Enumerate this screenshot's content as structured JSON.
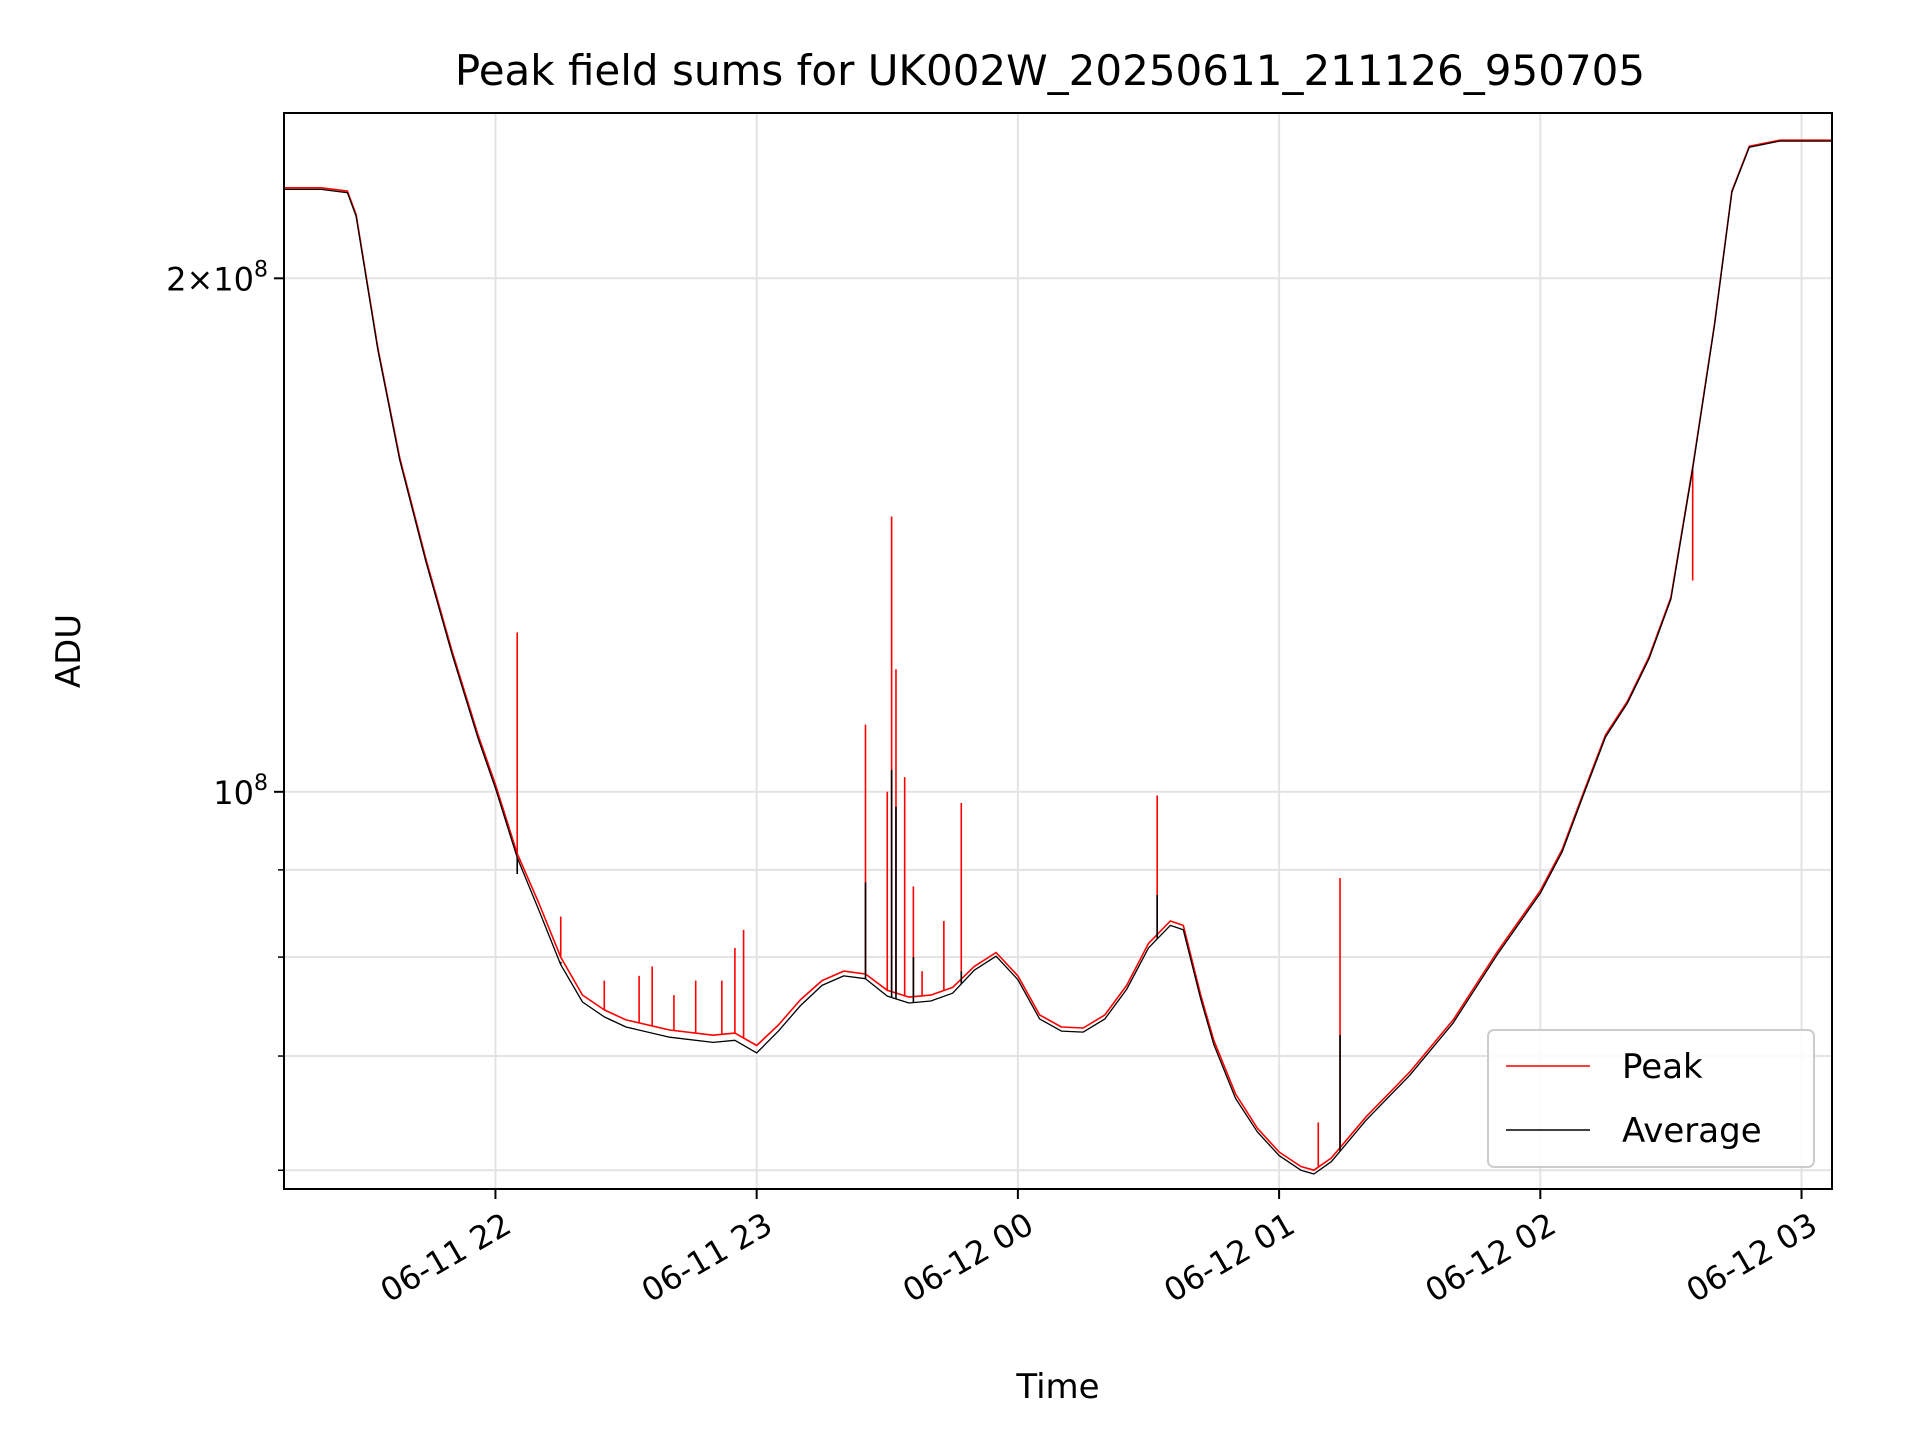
{
  "chart_data": {
    "type": "line",
    "title": "Peak field sums for UK002W_20250611_211126_950705",
    "xlabel": "Time",
    "ylabel": "ADU",
    "xlim": [
      "2025-06-11T21:11:26",
      "2025-06-12T03:07:00"
    ],
    "ylim": [
      58500000,
      250000000
    ],
    "yscale": "log",
    "grid": true,
    "legend_position": "lower right",
    "x_ticks": [
      {
        "label": "06-11 22",
        "time": "2025-06-11T22:00:00"
      },
      {
        "label": "06-11 23",
        "time": "2025-06-11T23:00:00"
      },
      {
        "label": "06-12 00",
        "time": "2025-06-12T00:00:00"
      },
      {
        "label": "06-12 01",
        "time": "2025-06-12T01:00:00"
      },
      {
        "label": "06-12 02",
        "time": "2025-06-12T02:00:00"
      },
      {
        "label": "06-12 03",
        "time": "2025-06-12T03:00:00"
      }
    ],
    "y_ticks_major": [
      {
        "base": "10",
        "exp": "8",
        "value": 100000000
      },
      {
        "mant": "2",
        "base": "10",
        "exp": "8",
        "value": 200000000
      }
    ],
    "y_ticks_minor": [
      60000000,
      70000000,
      80000000,
      90000000
    ],
    "series": [
      {
        "name": "Peak",
        "color": "#ff0000",
        "points": [
          [
            "2025-06-11T21:11:26",
            226000000
          ],
          [
            "2025-06-11T21:20:00",
            226000000
          ],
          [
            "2025-06-11T21:26:00",
            225000000
          ],
          [
            "2025-06-11T21:28:00",
            218000000
          ],
          [
            "2025-06-11T21:33:00",
            182000000
          ],
          [
            "2025-06-11T21:38:00",
            157000000
          ],
          [
            "2025-06-11T21:44:00",
            137000000
          ],
          [
            "2025-06-11T21:50:00",
            121000000
          ],
          [
            "2025-06-11T21:56:00",
            108000000
          ],
          [
            "2025-06-11T22:00:00",
            101000000
          ],
          [
            "2025-06-11T22:05:00",
            92000000
          ],
          [
            "2025-06-11T22:10:00",
            86000000
          ],
          [
            "2025-06-11T22:15:00",
            80000000
          ],
          [
            "2025-06-11T22:20:00",
            76000000
          ],
          [
            "2025-06-11T22:25:00",
            74500000
          ],
          [
            "2025-06-11T22:30:00",
            73500000
          ],
          [
            "2025-06-11T22:40:00",
            72500000
          ],
          [
            "2025-06-11T22:50:00",
            72000000
          ],
          [
            "2025-06-11T22:55:00",
            72200000
          ],
          [
            "2025-06-11T23:00:00",
            71000000
          ],
          [
            "2025-06-11T23:05:00",
            73000000
          ],
          [
            "2025-06-11T23:10:00",
            75500000
          ],
          [
            "2025-06-11T23:15:00",
            77500000
          ],
          [
            "2025-06-11T23:20:00",
            78500000
          ],
          [
            "2025-06-11T23:25:00",
            78200000
          ],
          [
            "2025-06-11T23:30:00",
            76500000
          ],
          [
            "2025-06-11T23:35:00",
            75800000
          ],
          [
            "2025-06-11T23:40:00",
            76000000
          ],
          [
            "2025-06-11T23:45:00",
            76800000
          ],
          [
            "2025-06-11T23:50:00",
            79000000
          ],
          [
            "2025-06-11T23:55:00",
            80500000
          ],
          [
            "2025-06-12T00:00:00",
            78000000
          ],
          [
            "2025-06-12T00:05:00",
            74000000
          ],
          [
            "2025-06-12T00:10:00",
            72800000
          ],
          [
            "2025-06-12T00:15:00",
            72700000
          ],
          [
            "2025-06-12T00:20:00",
            74000000
          ],
          [
            "2025-06-12T00:25:00",
            77000000
          ],
          [
            "2025-06-12T00:30:00",
            81500000
          ],
          [
            "2025-06-12T00:35:00",
            84000000
          ],
          [
            "2025-06-12T00:38:00",
            83500000
          ],
          [
            "2025-06-12T00:42:00",
            76000000
          ],
          [
            "2025-06-12T00:45:00",
            71500000
          ],
          [
            "2025-06-12T00:50:00",
            66500000
          ],
          [
            "2025-06-12T00:55:00",
            63500000
          ],
          [
            "2025-06-12T01:00:00",
            61500000
          ],
          [
            "2025-06-12T01:05:00",
            60300000
          ],
          [
            "2025-06-12T01:08:00",
            60000000
          ],
          [
            "2025-06-12T01:12:00",
            61000000
          ],
          [
            "2025-06-12T01:20:00",
            64500000
          ],
          [
            "2025-06-12T01:30:00",
            68500000
          ],
          [
            "2025-06-12T01:40:00",
            73500000
          ],
          [
            "2025-06-12T01:50:00",
            80500000
          ],
          [
            "2025-06-12T02:00:00",
            87500000
          ],
          [
            "2025-06-12T02:05:00",
            92500000
          ],
          [
            "2025-06-12T02:10:00",
            100000000
          ],
          [
            "2025-06-12T02:15:00",
            108000000
          ],
          [
            "2025-06-12T02:20:00",
            113000000
          ],
          [
            "2025-06-12T02:25:00",
            120000000
          ],
          [
            "2025-06-12T02:30:00",
            130000000
          ],
          [
            "2025-06-12T02:35:00",
            155000000
          ],
          [
            "2025-06-12T02:40:00",
            188000000
          ],
          [
            "2025-06-12T02:44:00",
            225000000
          ],
          [
            "2025-06-12T02:48:00",
            239000000
          ],
          [
            "2025-06-12T02:55:00",
            241000000
          ],
          [
            "2025-06-12T03:07:00",
            241000000
          ]
        ],
        "spikes": [
          [
            "2025-06-11T22:05:00",
            124000000
          ],
          [
            "2025-06-11T22:15:00",
            84500000
          ],
          [
            "2025-06-11T22:25:00",
            77500000
          ],
          [
            "2025-06-11T22:52:00",
            77500000
          ],
          [
            "2025-06-11T22:57:00",
            83000000
          ],
          [
            "2025-06-11T22:55:00",
            81000000
          ],
          [
            "2025-06-11T22:36:00",
            79000000
          ],
          [
            "2025-06-11T22:33:00",
            78000000
          ],
          [
            "2025-06-11T22:46:00",
            77500000
          ],
          [
            "2025-06-11T22:41:00",
            76000000
          ],
          [
            "2025-06-11T23:25:00",
            109500000
          ],
          [
            "2025-06-11T23:30:00",
            100000000
          ],
          [
            "2025-06-11T23:31:00",
            145000000
          ],
          [
            "2025-06-11T23:32:00",
            118000000
          ],
          [
            "2025-06-11T23:34:00",
            102000000
          ],
          [
            "2025-06-11T23:36:00",
            88000000
          ],
          [
            "2025-06-11T23:38:00",
            78500000
          ],
          [
            "2025-06-11T23:43:00",
            84000000
          ],
          [
            "2025-06-11T23:47:00",
            98500000
          ],
          [
            "2025-06-12T00:32:00",
            99500000
          ],
          [
            "2025-06-12T01:14:00",
            89000000
          ],
          [
            "2025-06-12T01:09:00",
            64000000
          ],
          [
            "2025-06-12T02:35:00",
            133000000
          ]
        ]
      },
      {
        "name": "Average",
        "color": "#000000",
        "points": [
          [
            "2025-06-11T21:11:26",
            225500000
          ],
          [
            "2025-06-11T21:20:00",
            225500000
          ],
          [
            "2025-06-11T21:26:00",
            224500000
          ],
          [
            "2025-06-11T21:28:00",
            217500000
          ],
          [
            "2025-06-11T21:33:00",
            181500000
          ],
          [
            "2025-06-11T21:38:00",
            156500000
          ],
          [
            "2025-06-11T21:44:00",
            136500000
          ],
          [
            "2025-06-11T21:50:00",
            120500000
          ],
          [
            "2025-06-11T21:56:00",
            107500000
          ],
          [
            "2025-06-11T22:00:00",
            100500000
          ],
          [
            "2025-06-11T22:05:00",
            91500000
          ],
          [
            "2025-06-11T22:10:00",
            85200000
          ],
          [
            "2025-06-11T22:15:00",
            79200000
          ],
          [
            "2025-06-11T22:20:00",
            75300000
          ],
          [
            "2025-06-11T22:25:00",
            73800000
          ],
          [
            "2025-06-11T22:30:00",
            72800000
          ],
          [
            "2025-06-11T22:40:00",
            71800000
          ],
          [
            "2025-06-11T22:50:00",
            71300000
          ],
          [
            "2025-06-11T22:55:00",
            71500000
          ],
          [
            "2025-06-11T23:00:00",
            70300000
          ],
          [
            "2025-06-11T23:05:00",
            72400000
          ],
          [
            "2025-06-11T23:10:00",
            74900000
          ],
          [
            "2025-06-11T23:15:00",
            77000000
          ],
          [
            "2025-06-11T23:20:00",
            78000000
          ],
          [
            "2025-06-11T23:25:00",
            77700000
          ],
          [
            "2025-06-11T23:30:00",
            75900000
          ],
          [
            "2025-06-11T23:35:00",
            75200000
          ],
          [
            "2025-06-11T23:40:00",
            75400000
          ],
          [
            "2025-06-11T23:45:00",
            76200000
          ],
          [
            "2025-06-11T23:50:00",
            78600000
          ],
          [
            "2025-06-11T23:55:00",
            80100000
          ],
          [
            "2025-06-12T00:00:00",
            77600000
          ],
          [
            "2025-06-12T00:05:00",
            73600000
          ],
          [
            "2025-06-12T00:10:00",
            72400000
          ],
          [
            "2025-06-12T00:15:00",
            72300000
          ],
          [
            "2025-06-12T00:20:00",
            73600000
          ],
          [
            "2025-06-12T00:25:00",
            76600000
          ],
          [
            "2025-06-12T00:30:00",
            81000000
          ],
          [
            "2025-06-12T00:35:00",
            83500000
          ],
          [
            "2025-06-12T00:38:00",
            83000000
          ],
          [
            "2025-06-12T00:42:00",
            75600000
          ],
          [
            "2025-06-12T00:45:00",
            71100000
          ],
          [
            "2025-06-12T00:50:00",
            66100000
          ],
          [
            "2025-06-12T00:55:00",
            63200000
          ],
          [
            "2025-06-12T01:00:00",
            61200000
          ],
          [
            "2025-06-12T01:05:00",
            60000000
          ],
          [
            "2025-06-12T01:08:00",
            59700000
          ],
          [
            "2025-06-12T01:12:00",
            60700000
          ],
          [
            "2025-06-12T01:20:00",
            64200000
          ],
          [
            "2025-06-12T01:30:00",
            68200000
          ],
          [
            "2025-06-12T01:40:00",
            73200000
          ],
          [
            "2025-06-12T01:50:00",
            80200000
          ],
          [
            "2025-06-12T02:00:00",
            87200000
          ],
          [
            "2025-06-12T02:05:00",
            92200000
          ],
          [
            "2025-06-12T02:10:00",
            99700000
          ],
          [
            "2025-06-12T02:15:00",
            107700000
          ],
          [
            "2025-06-12T02:20:00",
            112700000
          ],
          [
            "2025-06-12T02:25:00",
            119700000
          ],
          [
            "2025-06-12T02:30:00",
            129700000
          ],
          [
            "2025-06-12T02:35:00",
            154700000
          ],
          [
            "2025-06-12T02:40:00",
            187700000
          ],
          [
            "2025-06-12T02:44:00",
            224700000
          ],
          [
            "2025-06-12T02:48:00",
            238700000
          ],
          [
            "2025-06-12T02:55:00",
            240700000
          ],
          [
            "2025-06-12T03:07:00",
            240700000
          ]
        ],
        "spikes": [
          [
            "2025-06-11T22:05:00",
            89500000
          ],
          [
            "2025-06-11T22:15:00",
            79500000
          ],
          [
            "2025-06-11T23:25:00",
            88500000
          ],
          [
            "2025-06-11T23:31:00",
            103000000
          ],
          [
            "2025-06-11T23:32:00",
            98000000
          ],
          [
            "2025-06-11T23:36:00",
            80000000
          ],
          [
            "2025-06-11T23:47:00",
            78500000
          ],
          [
            "2025-06-12T00:32:00",
            87000000
          ],
          [
            "2025-06-12T01:14:00",
            72000000
          ]
        ]
      }
    ]
  }
}
